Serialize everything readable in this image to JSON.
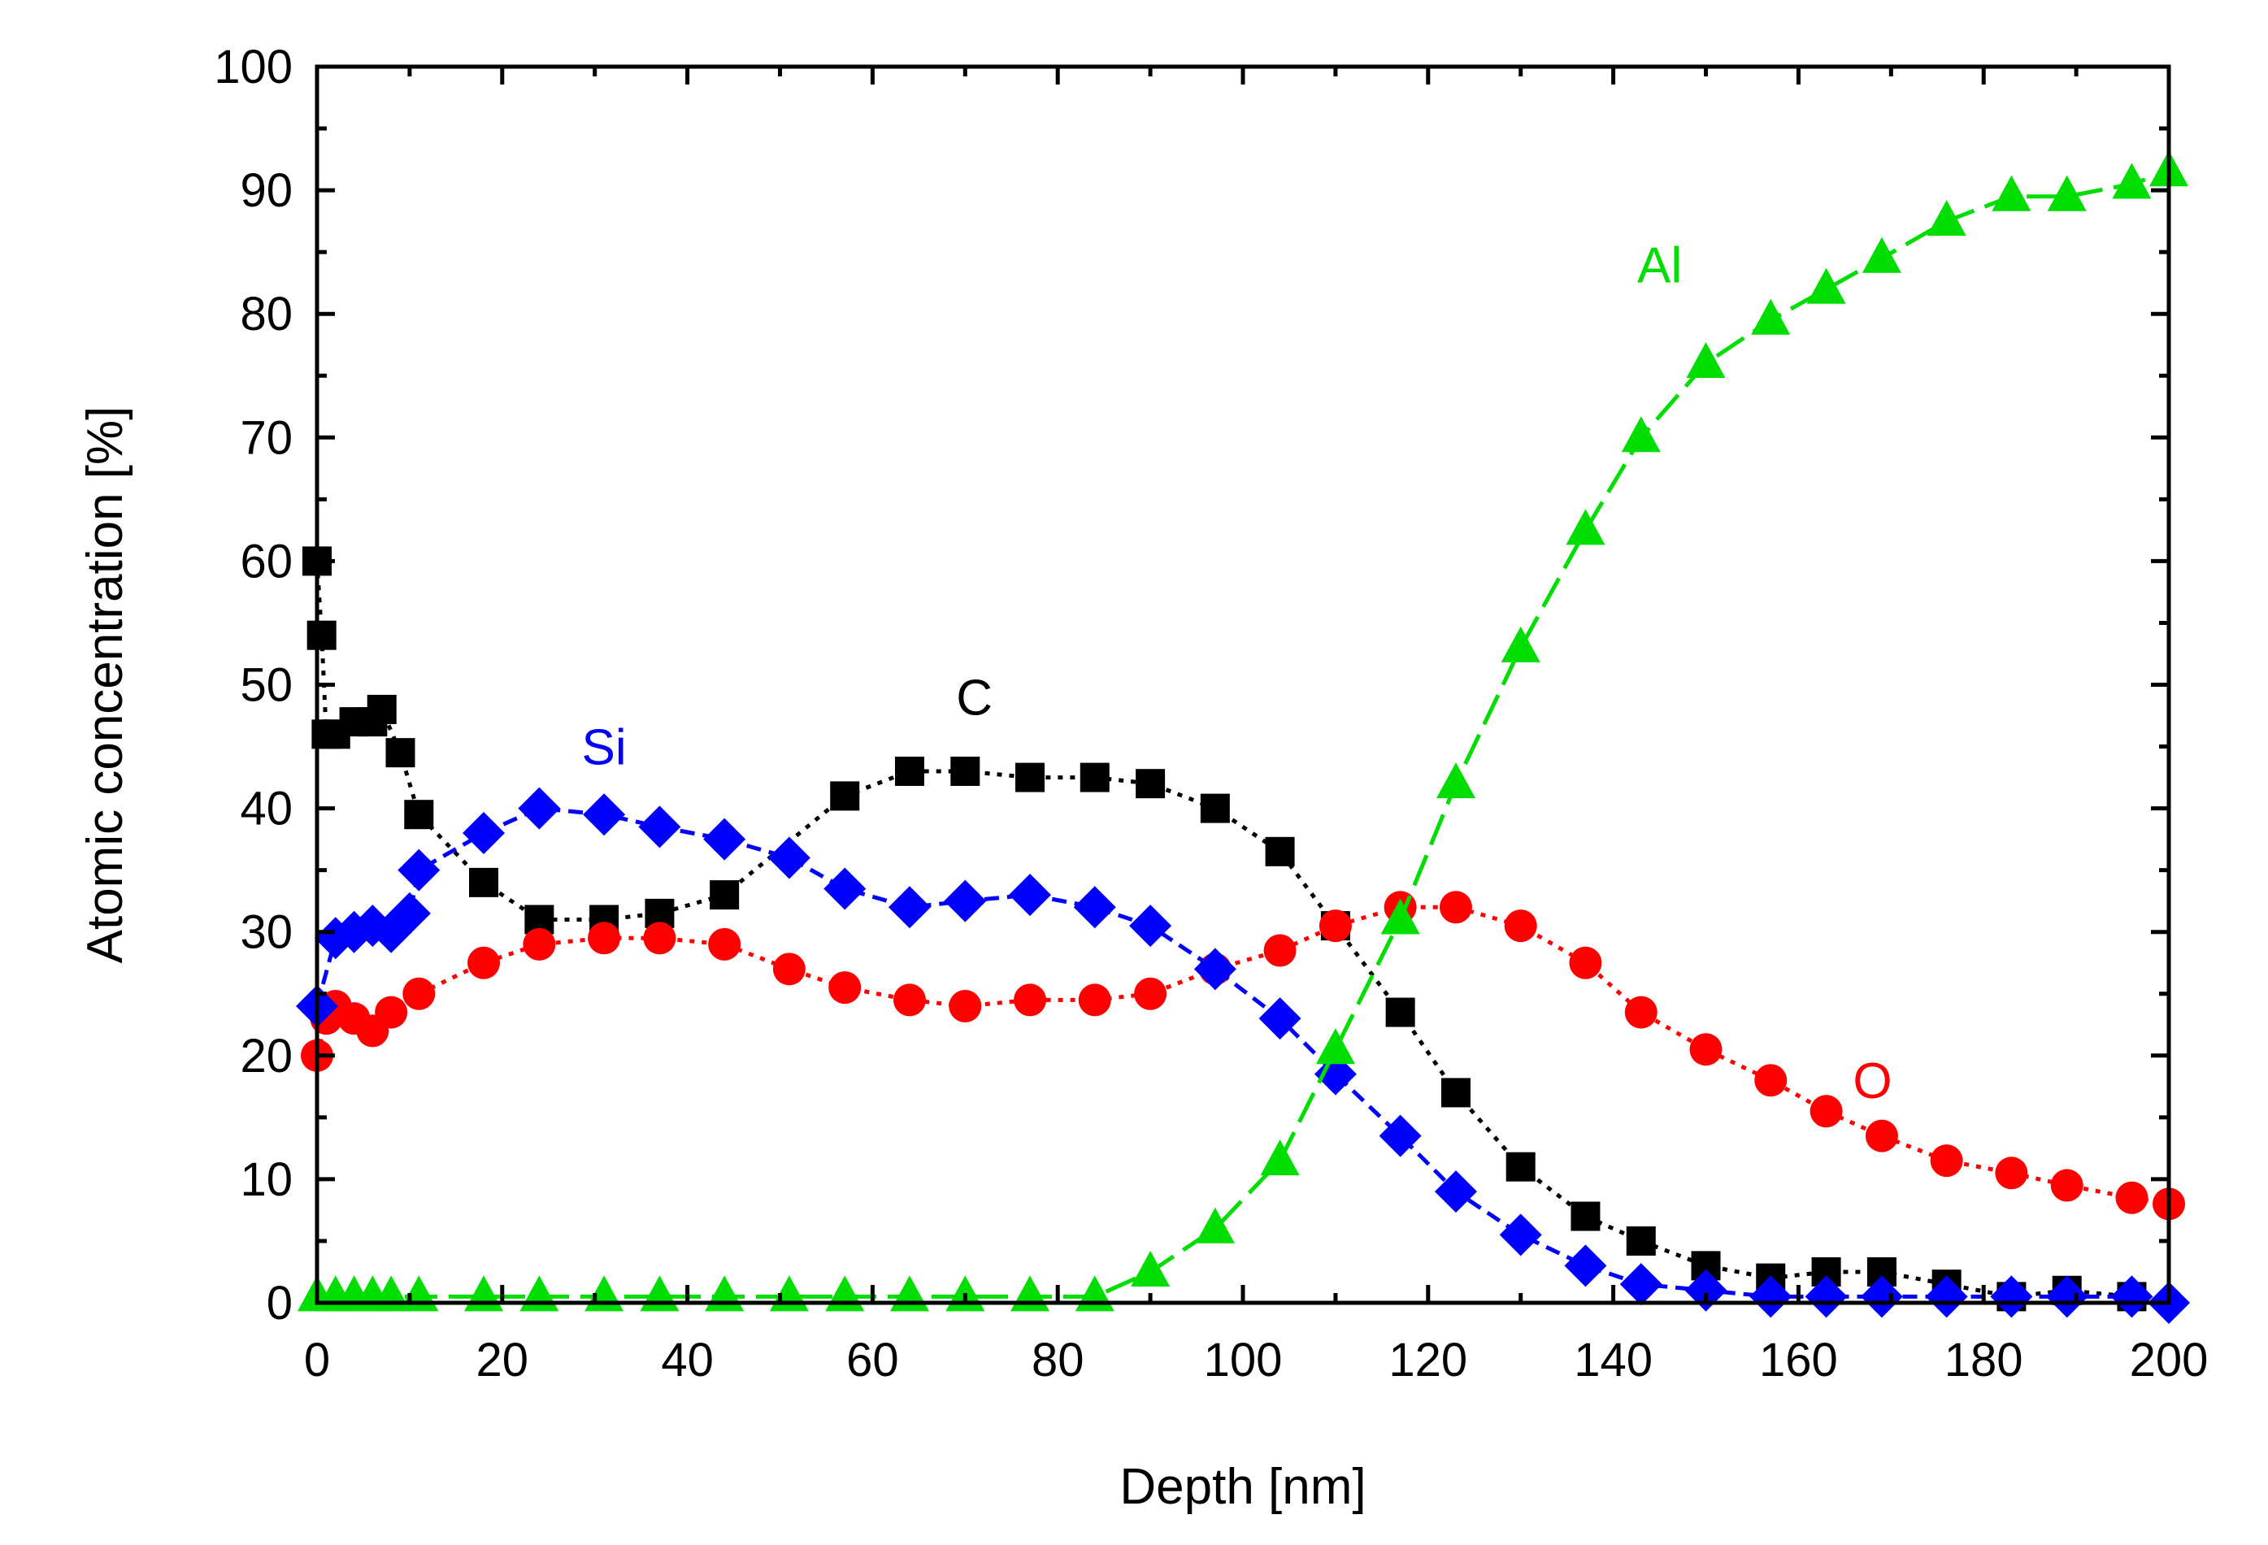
{
  "chart_data": {
    "type": "scatter",
    "title": "",
    "xlabel": "Depth [nm]",
    "ylabel": "Atomic concentration [%]",
    "xlim": [
      0,
      200
    ],
    "ylim": [
      0,
      100
    ],
    "xticks": [
      0,
      20,
      40,
      60,
      80,
      100,
      120,
      140,
      160,
      180,
      200
    ],
    "yticks": [
      0,
      10,
      20,
      30,
      40,
      50,
      60,
      70,
      80,
      90,
      100
    ],
    "grid": false,
    "series": [
      {
        "name": "C",
        "color": "#000000",
        "marker": "square",
        "line": "dotted",
        "label_at": [
          71,
          49
        ],
        "x": [
          0,
          0.5,
          1,
          2,
          4,
          6,
          7,
          9,
          11,
          18,
          24,
          31,
          37,
          44,
          57,
          64,
          70,
          77,
          84,
          90,
          97,
          104,
          110,
          117,
          123,
          130,
          137,
          143,
          150,
          157,
          163,
          169,
          176,
          183,
          189,
          196
        ],
        "y": [
          60,
          54,
          46,
          46,
          47,
          47,
          48,
          44.5,
          39.5,
          34,
          31,
          31,
          31.5,
          33,
          41,
          43,
          43,
          42.5,
          42.5,
          42,
          40,
          36.5,
          30.5,
          23.5,
          17,
          11,
          7,
          5,
          3,
          2,
          2.5,
          2.5,
          1.5,
          0.5,
          1,
          0.5
        ]
      },
      {
        "name": "O",
        "color": "#ff0000",
        "marker": "circle",
        "line": "dotted",
        "label_at": [
          168,
          18
        ],
        "x": [
          0,
          1,
          2,
          4,
          6,
          8,
          11,
          18,
          24,
          31,
          37,
          44,
          51,
          57,
          64,
          70,
          77,
          84,
          90,
          97,
          104,
          110,
          117,
          123,
          130,
          137,
          143,
          150,
          157,
          163,
          169,
          176,
          183,
          189,
          196,
          200
        ],
        "y": [
          20,
          23,
          24,
          23,
          22,
          23.5,
          25,
          27.5,
          29,
          29.5,
          29.5,
          29,
          27,
          25.5,
          24.5,
          24,
          24.5,
          24.5,
          25,
          27,
          28.5,
          30.5,
          32,
          32,
          30.5,
          27.5,
          23.5,
          20.5,
          18,
          15.5,
          13.5,
          11.5,
          10.5,
          9.5,
          8.5,
          8
        ]
      },
      {
        "name": "Si",
        "color": "#0000ff",
        "marker": "diamond",
        "line": "dashed",
        "label_at": [
          31,
          45
        ],
        "x": [
          0,
          2,
          4,
          6,
          8,
          10,
          11,
          18,
          24,
          31,
          37,
          44,
          51,
          57,
          64,
          70,
          77,
          84,
          90,
          97,
          104,
          110,
          117,
          123,
          130,
          137,
          143,
          150,
          157,
          163,
          169,
          176,
          183,
          189,
          196,
          200
        ],
        "y": [
          24,
          29.5,
          30,
          30.5,
          30,
          31.5,
          35,
          38,
          40,
          39.5,
          38.5,
          37.5,
          36,
          33.5,
          32,
          32.5,
          33,
          32,
          30.5,
          27,
          23,
          18.5,
          13.5,
          9,
          5.5,
          3,
          1.5,
          1,
          0.5,
          0.5,
          0.5,
          0.5,
          0.5,
          0.5,
          0.5,
          0
        ]
      },
      {
        "name": "Al",
        "color": "#00dd00",
        "marker": "triangle",
        "line": "long-dashed",
        "label_at": [
          145,
          84
        ],
        "x": [
          0,
          2,
          4,
          6,
          8,
          11,
          18,
          24,
          31,
          37,
          44,
          51,
          57,
          64,
          70,
          77,
          84,
          90,
          97,
          104,
          110,
          117,
          123,
          130,
          137,
          143,
          150,
          157,
          163,
          169,
          176,
          183,
          189,
          196,
          200
        ],
        "y": [
          0.5,
          0.5,
          0.5,
          0.5,
          0.5,
          0.5,
          0.5,
          0.5,
          0.5,
          0.5,
          0.5,
          0.5,
          0.5,
          0.5,
          0.5,
          0.5,
          0.5,
          2.5,
          6,
          11.5,
          20.5,
          31,
          42,
          53,
          62.5,
          70,
          76,
          79.5,
          82,
          84.5,
          87.5,
          89.5,
          89.5,
          90.5,
          91.5
        ]
      }
    ]
  }
}
